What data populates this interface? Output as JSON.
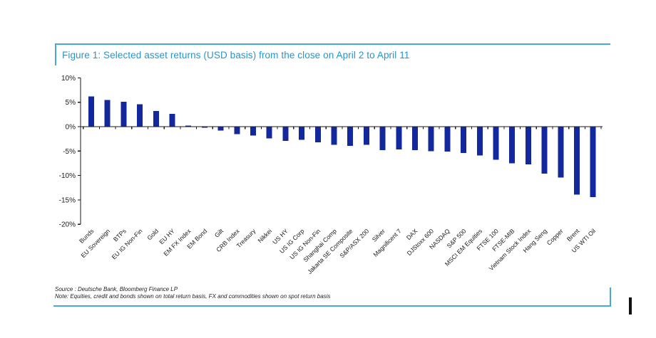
{
  "figure": {
    "title": "Figure 1: Selected asset returns (USD basis) from the close on April 2 to April 11",
    "source_line": "Source : Deutsche Bank, Bloomberg Finance LP",
    "note_line": "Note: Equities, credit and bonds shown on total return basis, FX and commodities shown on spot return basis"
  },
  "colors": {
    "bar": "#14289e",
    "accent_blue": "#44a9d6",
    "title_blue": "#2197cf",
    "axis": "#1a1a1a"
  },
  "chart_data": {
    "type": "bar",
    "title": "Figure 1: Selected asset returns (USD basis) from the close on April 2 to April 11",
    "xlabel": "",
    "ylabel": "",
    "ylim": [
      -20,
      10
    ],
    "grid": false,
    "y_ticks": [
      10,
      5,
      0,
      -5,
      -10,
      -15,
      -20
    ],
    "y_tick_labels": [
      "10%",
      "5%",
      "0%",
      "-5%",
      "-10%",
      "-15%",
      "-20%"
    ],
    "categories": [
      "Bunds",
      "EU Sovereign",
      "BTPs",
      "EU IG Non-Fin",
      "Gold",
      "EU HY",
      "EM FX Index",
      "EM Bond",
      "Gilt",
      "CRB Index",
      "Treasury",
      "Nikkei",
      "US HY",
      "US IG Corp",
      "US IG Non-Fin",
      "Shanghai Comp",
      "Jakarta SE Composite",
      "S&P/ASX 200",
      "Silver",
      "Magnificent 7",
      "DAX",
      "DJStoxx 600",
      "NASDAQ",
      "S&P 500",
      "MSCI EM Equities",
      "FTSE 100",
      "FTSE-MIB",
      "Vietnam Stock Index",
      "Hang Seng",
      "Copper",
      "Brent",
      "US WTI Oil"
    ],
    "values": [
      6.2,
      5.5,
      5.1,
      4.6,
      3.2,
      2.6,
      0.2,
      -0.2,
      -0.8,
      -1.5,
      -1.8,
      -2.4,
      -2.9,
      -2.7,
      -3.2,
      -3.7,
      -3.9,
      -3.7,
      -4.8,
      -4.7,
      -4.8,
      -5.0,
      -5.1,
      -5.4,
      -5.9,
      -6.8,
      -7.5,
      -7.7,
      -9.6,
      -10.4,
      -13.9,
      -14.4
    ]
  }
}
